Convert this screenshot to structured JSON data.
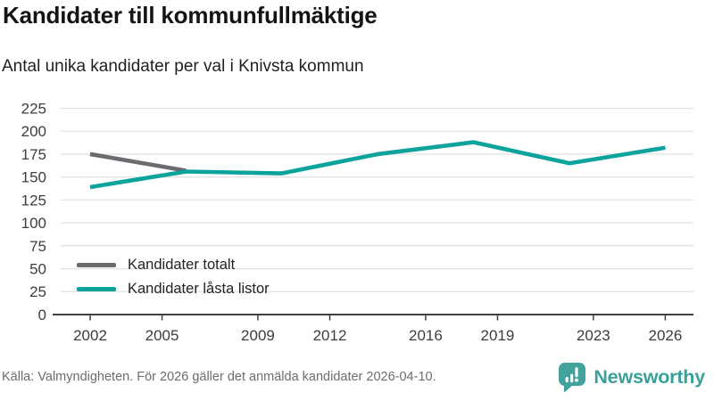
{
  "header": {
    "title": "Kandidater till kommunfullmäktige",
    "subtitle": "Antal unika kandidater per val i Knivsta kommun"
  },
  "chart_data": {
    "type": "line",
    "title": "Kandidater till kommunfullmäktige",
    "subtitle": "Antal unika kandidater per val i Knivsta kommun",
    "xlabel": "",
    "ylabel": "",
    "series": [
      {
        "name": "Kandidater totalt",
        "color": "#6b6b6f",
        "x": [
          2002,
          2006
        ],
        "values": [
          175,
          157
        ]
      },
      {
        "name": "Kandidater låsta listor",
        "color": "#0ba39b",
        "x": [
          2002,
          2006,
          2010,
          2014,
          2018,
          2022,
          2026
        ],
        "values": [
          139,
          156,
          154,
          175,
          188,
          165,
          182
        ]
      }
    ],
    "xticks": [
      2002,
      2005,
      2009,
      2012,
      2016,
      2019,
      2023,
      2026
    ],
    "yticks": [
      0,
      25,
      50,
      75,
      100,
      125,
      150,
      175,
      200,
      225
    ],
    "xlim": [
      2000.5,
      2027
    ],
    "ylim": [
      0,
      225
    ],
    "grid": "horizontal",
    "legend_position": "inside-bottom-left"
  },
  "axis_colors": {
    "gridline": "#e3e3e3",
    "baseline": "#3f3f3f",
    "tick_label": "#3d3d3d"
  },
  "footer": {
    "source": "Källa: Valmyndigheten. För 2026 gäller det anmälda kandidater 2026-04-10.",
    "brand": "Newsworthy",
    "brand_color": "#3aa09a"
  }
}
